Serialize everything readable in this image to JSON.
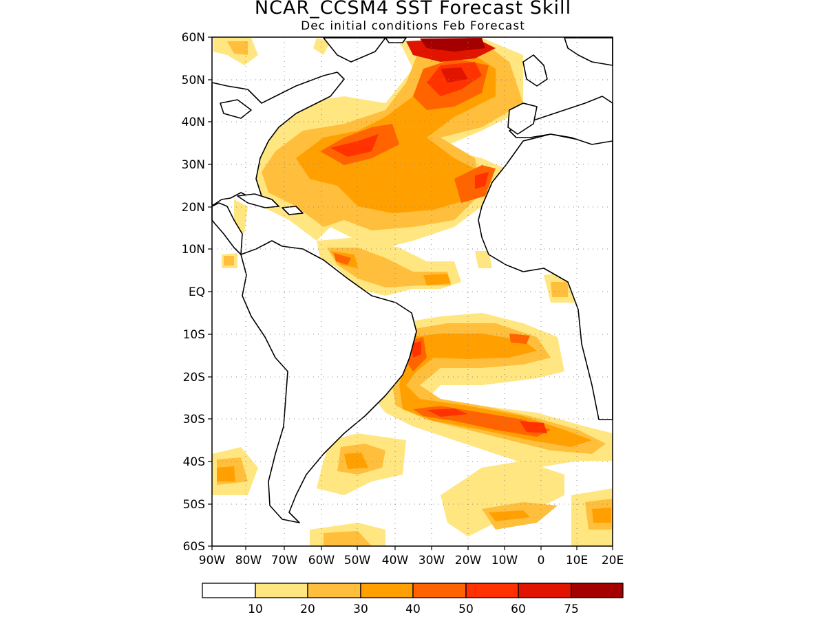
{
  "title": "NCAR_CCSM4 SST Forecast Skill",
  "subtitle": "Dec initial conditions  Feb Forecast",
  "map": {
    "lat_labels": [
      "60N",
      "50N",
      "40N",
      "30N",
      "20N",
      "10N",
      "EQ",
      "10S",
      "20S",
      "30S",
      "40S",
      "50S",
      "60S"
    ],
    "lon_labels": [
      "90W",
      "80W",
      "70W",
      "60W",
      "50W",
      "40W",
      "30W",
      "20W",
      "10W",
      "0",
      "10E",
      "20E"
    ],
    "lat_range": [
      -60,
      60
    ],
    "lon_range": [
      -90,
      20
    ],
    "grid": "dotted"
  },
  "colorbar": {
    "labels": [
      "10",
      "20",
      "30",
      "40",
      "50",
      "60",
      "75"
    ],
    "colors": [
      "#ffffff",
      "#ffe680",
      "#ffbe3c",
      "#ffa000",
      "#ff6400",
      "#ff3200",
      "#e11400",
      "#a50000"
    ]
  },
  "skill_colors": {
    "c10": "#ffe680",
    "c20": "#ffbe3c",
    "c30": "#ffa000",
    "c40": "#ff6400",
    "c50": "#ff3200",
    "c60": "#e11400",
    "c75": "#a50000"
  }
}
